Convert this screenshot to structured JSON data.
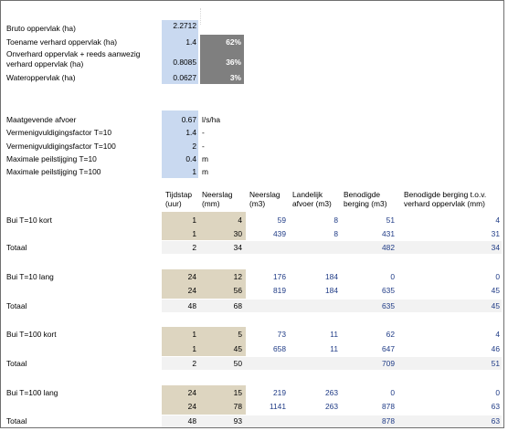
{
  "top": {
    "bruto_label": "Bruto oppervlak (ha)",
    "bruto_value": "2.2712",
    "verhard_label": "Toename verhard oppervlak (ha)",
    "verhard_value": "1.4",
    "verhard_pct": "62%",
    "onverhard_label_1": "Onverhard oppervlak + reeds aanwezig",
    "onverhard_label_2": "verhard oppervlak (ha)",
    "onverhard_value": "0.8085",
    "onverhard_pct": "36%",
    "water_label": "Wateroppervlak (ha)",
    "water_value": "0.0627",
    "water_pct": "3%"
  },
  "params": {
    "afvoer_label": "Maatgevende afvoer",
    "afvoer_value": "0.67",
    "afvoer_unit": "l/s/ha",
    "f10_label": "Vermenigvuldigingsfactor T=10",
    "f10_value": "1.4",
    "f10_unit": "-",
    "f100_label": "Vermenigvuldigingsfactor T=100",
    "f100_value": "2",
    "f100_unit": "-",
    "p10_label": "Maximale peilstijging T=10",
    "p10_value": "0.4",
    "p10_unit": "m",
    "p100_label": "Maximale peilstijging T=100",
    "p100_value": "1",
    "p100_unit": "m"
  },
  "headers": {
    "tijdstap_1": "Tijdstap",
    "tijdstap_2": "(uur)",
    "neerslag_1": "Neerslag",
    "neerslag_2": "(mm)",
    "neerslag_m3_1": "Neerslag",
    "neerslag_m3_2": "(m3)",
    "afvoer_1": "Landelijk",
    "afvoer_2": "afvoer (m3)",
    "berging_1": "Benodigde",
    "berging_2": "berging (m3)",
    "berging_tov_1": "Benodigde berging t.o.v.",
    "berging_tov_2": "verhard oppervlak (mm)"
  },
  "blocks": [
    {
      "label": "Bui T=10 kort",
      "rows": [
        {
          "tijdstap": "1",
          "neerslag": "4",
          "neerslag_m3": "59",
          "afvoer": "8",
          "berging": "51",
          "berging_tov": "4"
        },
        {
          "tijdstap": "1",
          "neerslag": "30",
          "neerslag_m3": "439",
          "afvoer": "8",
          "berging": "431",
          "berging_tov": "31"
        }
      ],
      "total": {
        "label": "Totaal",
        "tijdstap": "2",
        "neerslag": "34",
        "berging": "482",
        "berging_tov": "34"
      }
    },
    {
      "label": "Bui T=10 lang",
      "rows": [
        {
          "tijdstap": "24",
          "neerslag": "12",
          "neerslag_m3": "176",
          "afvoer": "184",
          "berging": "0",
          "berging_tov": "0"
        },
        {
          "tijdstap": "24",
          "neerslag": "56",
          "neerslag_m3": "819",
          "afvoer": "184",
          "berging": "635",
          "berging_tov": "45"
        }
      ],
      "total": {
        "label": "Totaal",
        "tijdstap": "48",
        "neerslag": "68",
        "berging": "635",
        "berging_tov": "45"
      }
    },
    {
      "label": "Bui T=100 kort",
      "rows": [
        {
          "tijdstap": "1",
          "neerslag": "5",
          "neerslag_m3": "73",
          "afvoer": "11",
          "berging": "62",
          "berging_tov": "4"
        },
        {
          "tijdstap": "1",
          "neerslag": "45",
          "neerslag_m3": "658",
          "afvoer": "11",
          "berging": "647",
          "berging_tov": "46"
        }
      ],
      "total": {
        "label": "Totaal",
        "tijdstap": "2",
        "neerslag": "50",
        "berging": "709",
        "berging_tov": "51"
      }
    },
    {
      "label": "Bui T=100 lang",
      "rows": [
        {
          "tijdstap": "24",
          "neerslag": "15",
          "neerslag_m3": "219",
          "afvoer": "263",
          "berging": "0",
          "berging_tov": "0"
        },
        {
          "tijdstap": "24",
          "neerslag": "78",
          "neerslag_m3": "1141",
          "afvoer": "263",
          "berging": "878",
          "berging_tov": "63"
        }
      ],
      "total": {
        "label": "Totaal",
        "tijdstap": "48",
        "neerslag": "93",
        "berging": "878",
        "berging_tov": "63"
      }
    }
  ]
}
